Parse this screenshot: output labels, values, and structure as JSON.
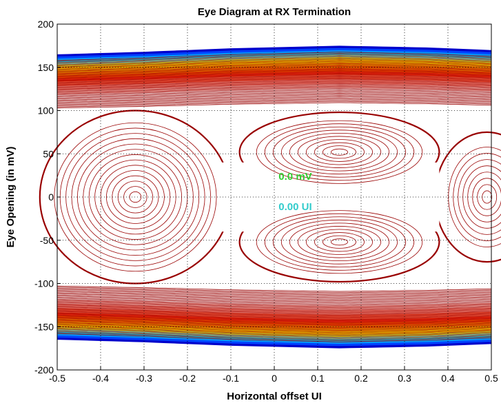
{
  "chart_data": {
    "type": "contour",
    "title": "Eye Diagram at RX Termination",
    "xlabel": "Horizontal offset UI",
    "ylabel": "Eye Opening (in mV)",
    "xlim": [
      -0.5,
      0.5
    ],
    "ylim": [
      -200,
      200
    ],
    "xticks": [
      -0.5,
      -0.4,
      -0.3,
      -0.2,
      -0.1,
      0,
      0.1,
      0.2,
      0.3,
      0.4,
      0.5
    ],
    "xtick_labels": [
      "-0.5",
      "-0.4",
      "-0.3",
      "-0.2",
      "-0.1",
      "0",
      "0.1",
      "0.2",
      "0.3",
      "0.4",
      "0.5"
    ],
    "yticks": [
      -200,
      -150,
      -100,
      -50,
      0,
      50,
      100,
      150,
      200
    ],
    "ytick_labels": [
      "-200",
      "-150",
      "-100",
      "-50",
      "0",
      "50",
      "100",
      "150",
      "200"
    ],
    "grid": true,
    "envelope": {
      "upper": [
        [
          -0.5,
          165
        ],
        [
          -0.3,
          168
        ],
        [
          -0.1,
          172
        ],
        [
          0.15,
          175
        ],
        [
          0.35,
          173
        ],
        [
          0.5,
          170
        ]
      ],
      "lower": [
        [
          -0.5,
          -165
        ],
        [
          -0.3,
          -168
        ],
        [
          -0.1,
          -172
        ],
        [
          0.15,
          -175
        ],
        [
          0.35,
          -173
        ],
        [
          0.5,
          -170
        ]
      ]
    },
    "annotations": [
      {
        "text": "0.0 mV",
        "x": 0.01,
        "y": 20,
        "color": "#33cc33"
      },
      {
        "text": "0.00 UI",
        "x": 0.01,
        "y": -15,
        "color": "#33cccc"
      }
    ],
    "colors": {
      "contour": "#990000",
      "hot": [
        "#ffffff",
        "#ff3300",
        "#ff8800",
        "#ffcc00",
        "#ffff00",
        "#66ff66",
        "#00ffff",
        "#0088ff",
        "#0000cc"
      ]
    }
  }
}
